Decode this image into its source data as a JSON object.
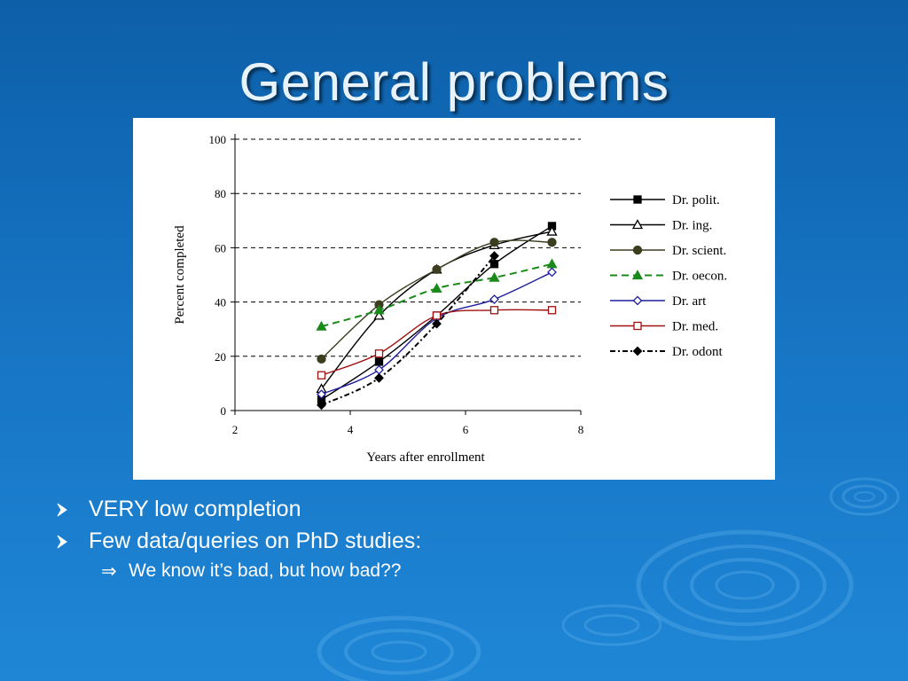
{
  "slide": {
    "title": "General problems",
    "bullets": [
      {
        "text": "VERY low completion"
      },
      {
        "text": "Few data/queries on PhD studies:"
      }
    ],
    "sub_bullet": {
      "symbol": "⇒",
      "text": "We know it’s bad, but how bad??"
    }
  },
  "chart_data": {
    "type": "line",
    "xlabel": "Years after enrollment",
    "ylabel": "Percent  completed",
    "xlim": [
      2,
      8
    ],
    "ylim": [
      0,
      100
    ],
    "xticks": [
      "2",
      "4",
      "6",
      "8"
    ],
    "yticks": [
      "0",
      "20",
      "40",
      "60",
      "80",
      "100"
    ],
    "grid": "horizontal dashed",
    "legend_position": "right",
    "series": [
      {
        "name": "Dr. polit.",
        "color": "#000000",
        "dash": "",
        "marker": "square-filled",
        "x": [
          3.5,
          4.5,
          5.5,
          6.5,
          7.5
        ],
        "y": [
          4,
          18,
          35,
          54,
          68
        ]
      },
      {
        "name": "Dr. ing.",
        "color": "#000000",
        "dash": "",
        "marker": "triangle-open",
        "x": [
          3.5,
          4.5,
          5.5,
          6.5,
          7.5
        ],
        "y": [
          8,
          35,
          52,
          61,
          66
        ]
      },
      {
        "name": "Dr. scient.",
        "color": "#3d3d20",
        "dash": "",
        "marker": "circle-filled",
        "x": [
          3.5,
          4.5,
          5.5,
          6.5,
          7.5
        ],
        "y": [
          19,
          39,
          52,
          62,
          62
        ]
      },
      {
        "name": "Dr. oecon.",
        "color": "#1a8a1a",
        "dash": "8,5",
        "marker": "triangle-filled",
        "x": [
          3.5,
          4.5,
          5.5,
          6.5,
          7.5
        ],
        "y": [
          31,
          37,
          45,
          49,
          54
        ]
      },
      {
        "name": "Dr. art",
        "color": "#1f1f9e",
        "dash": "",
        "marker": "diamond-open",
        "x": [
          3.5,
          4.5,
          5.5,
          6.5,
          7.5
        ],
        "y": [
          6,
          15,
          34,
          41,
          51
        ]
      },
      {
        "name": "Dr. med.",
        "color": "#a01010",
        "dash": "",
        "marker": "square-open",
        "x": [
          3.5,
          4.5,
          5.5,
          6.5,
          7.5
        ],
        "y": [
          13,
          21,
          35,
          37,
          37
        ]
      },
      {
        "name": "Dr. odont",
        "color": "#000000",
        "dash": "6,3,2,3",
        "marker": "diamond-filled",
        "x": [
          3.5,
          4.5,
          5.5,
          6.5
        ],
        "y": [
          2,
          12,
          32,
          57
        ]
      }
    ]
  }
}
